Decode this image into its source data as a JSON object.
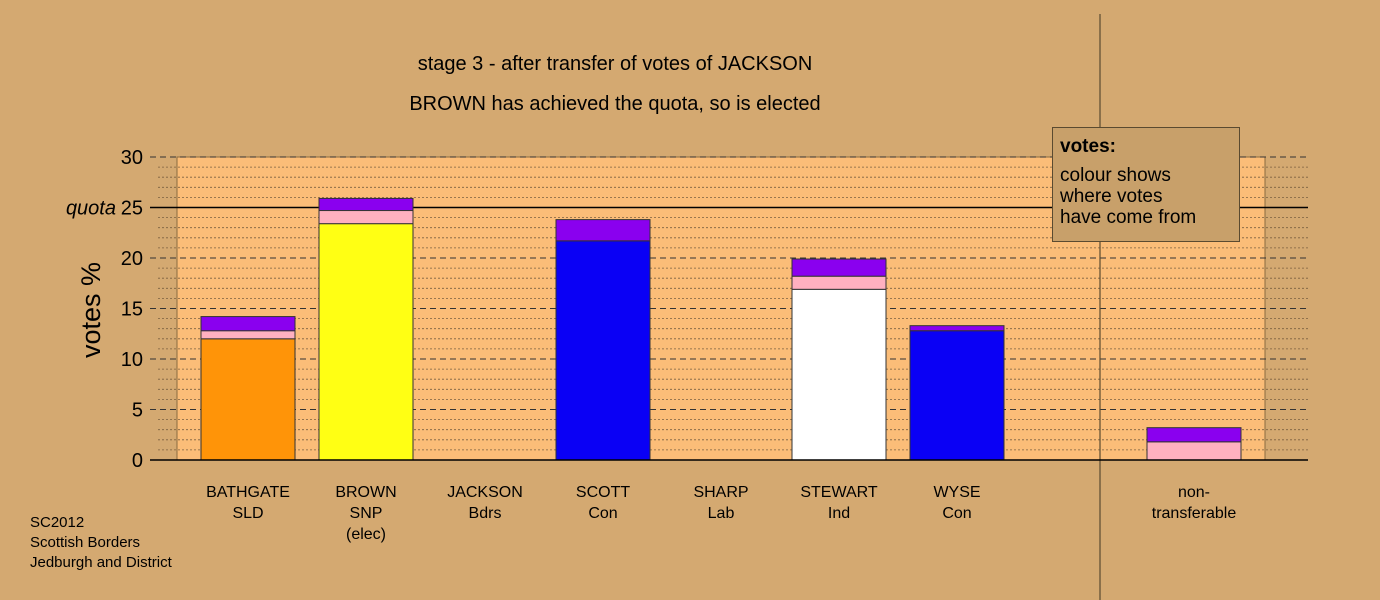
{
  "chart_data": {
    "type": "bar",
    "stacked": true,
    "title": "stage 3 - after transfer of votes of JACKSON",
    "subtitle": "BROWN has achieved the quota, so is elected",
    "ylabel": "votes %",
    "ylim": [
      0,
      30
    ],
    "yticks": [
      "0",
      "5",
      "10",
      "15",
      "20",
      "25",
      "30"
    ],
    "quota_label": "quota",
    "quota_value": 25,
    "categories": [
      {
        "name": "BATHGATE",
        "party": "SLD",
        "note": ""
      },
      {
        "name": "BROWN",
        "party": "SNP",
        "note": "(elec)"
      },
      {
        "name": "JACKSON",
        "party": "Bdrs",
        "note": ""
      },
      {
        "name": "SCOTT",
        "party": "Con",
        "note": ""
      },
      {
        "name": "SHARP",
        "party": "Lab",
        "note": ""
      },
      {
        "name": "STEWART",
        "party": "Ind",
        "note": ""
      },
      {
        "name": "WYSE",
        "party": "Con",
        "note": ""
      },
      {
        "name": "non-",
        "party": "transferable",
        "note": ""
      }
    ],
    "segments": [
      [
        {
          "value": 12.0,
          "color": "#ff9408"
        },
        {
          "value": 0.8,
          "color": "#ffb0c0"
        },
        {
          "value": 1.4,
          "color": "#8a00ef"
        }
      ],
      [
        {
          "value": 23.4,
          "color": "#ffff14"
        },
        {
          "value": 1.3,
          "color": "#ffb0c0"
        },
        {
          "value": 1.2,
          "color": "#8a00ef"
        }
      ],
      [],
      [
        {
          "value": 21.7,
          "color": "#0a00f5"
        },
        {
          "value": 2.1,
          "color": "#8a00ef"
        }
      ],
      [],
      [
        {
          "value": 16.9,
          "color": "#ffffff"
        },
        {
          "value": 1.3,
          "color": "#ffb0c0"
        },
        {
          "value": 1.7,
          "color": "#8a00ef"
        }
      ],
      [
        {
          "value": 12.8,
          "color": "#0a00f5"
        },
        {
          "value": 0.5,
          "color": "#8a00ef"
        }
      ],
      [
        {
          "value": 1.8,
          "color": "#ffb0c0"
        },
        {
          "value": 1.4,
          "color": "#8a00ef"
        }
      ]
    ],
    "legend_title": "votes:",
    "legend_lines": [
      "colour shows",
      "where votes",
      "have come from"
    ]
  },
  "footer": [
    "SC2012",
    "Scottish Borders",
    "Jedburgh and District"
  ],
  "colors": {
    "background": "#d4a971",
    "plot_area": "#fbbd78"
  }
}
